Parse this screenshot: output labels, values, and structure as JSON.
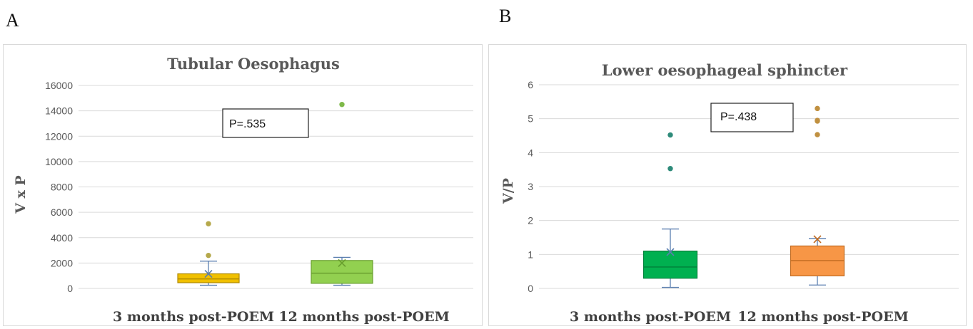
{
  "panels": [
    {
      "letter": "A"
    },
    {
      "letter": "B"
    }
  ],
  "chart_data": [
    {
      "type": "box",
      "title": "Tubular Oesophagus",
      "ylabel": "V x P",
      "xlabel": "",
      "categories": [
        "3 months post-POEM",
        "12 months post-POEM"
      ],
      "ylim": [
        0,
        16000
      ],
      "yticks": [
        0,
        2000,
        4000,
        6000,
        8000,
        10000,
        12000,
        14000,
        16000
      ],
      "ytick_labels": [
        "0",
        "2000",
        "4000",
        "6000",
        "8000",
        "10000",
        "12000",
        "14000",
        "16000"
      ],
      "grid": true,
      "annotation": "P=.535",
      "boxes": [
        {
          "category": "3 months post-POEM",
          "whisker_low": 250,
          "q1": 450,
          "median": 750,
          "q3": 1150,
          "whisker_high": 2150,
          "mean": 1150,
          "outliers": [
            2600,
            5100
          ],
          "color": "#f0c000",
          "edge": "#b08a00",
          "outlier_color": "#b5a84a"
        },
        {
          "category": "12 months post-POEM",
          "whisker_low": 250,
          "q1": 400,
          "median": 1200,
          "q3": 2200,
          "whisker_high": 2450,
          "mean": 2000,
          "outliers": [
            14500
          ],
          "color": "#92d050",
          "edge": "#6aa030",
          "outlier_color": "#7fb94a"
        }
      ]
    },
    {
      "type": "box",
      "title": "Lower oesophageal sphincter",
      "ylabel": "V/P",
      "xlabel": "",
      "categories": [
        "3 months post-POEM",
        "12 months post-POEM"
      ],
      "ylim": [
        0,
        6
      ],
      "yticks": [
        0,
        1,
        2,
        3,
        4,
        5,
        6
      ],
      "ytick_labels": [
        "0",
        "1",
        "2",
        "3",
        "4",
        "5",
        "6"
      ],
      "grid": true,
      "annotation": "P=.438",
      "boxes": [
        {
          "category": "3 months post-POEM",
          "whisker_low": 0.03,
          "q1": 0.3,
          "median": 0.63,
          "q3": 1.1,
          "whisker_high": 1.75,
          "mean": 1.07,
          "outliers": [
            3.53,
            4.52
          ],
          "color": "#00b050",
          "edge": "#00803a",
          "outlier_color": "#2e8b7a"
        },
        {
          "category": "12 months post-POEM",
          "whisker_low": 0.1,
          "q1": 0.37,
          "median": 0.82,
          "q3": 1.25,
          "whisker_high": 1.47,
          "mean": 1.45,
          "outliers": [
            4.53,
            4.93,
            4.95,
            5.3
          ],
          "color": "#f79646",
          "edge": "#c06a20",
          "outlier_color": "#c09040"
        }
      ]
    }
  ]
}
